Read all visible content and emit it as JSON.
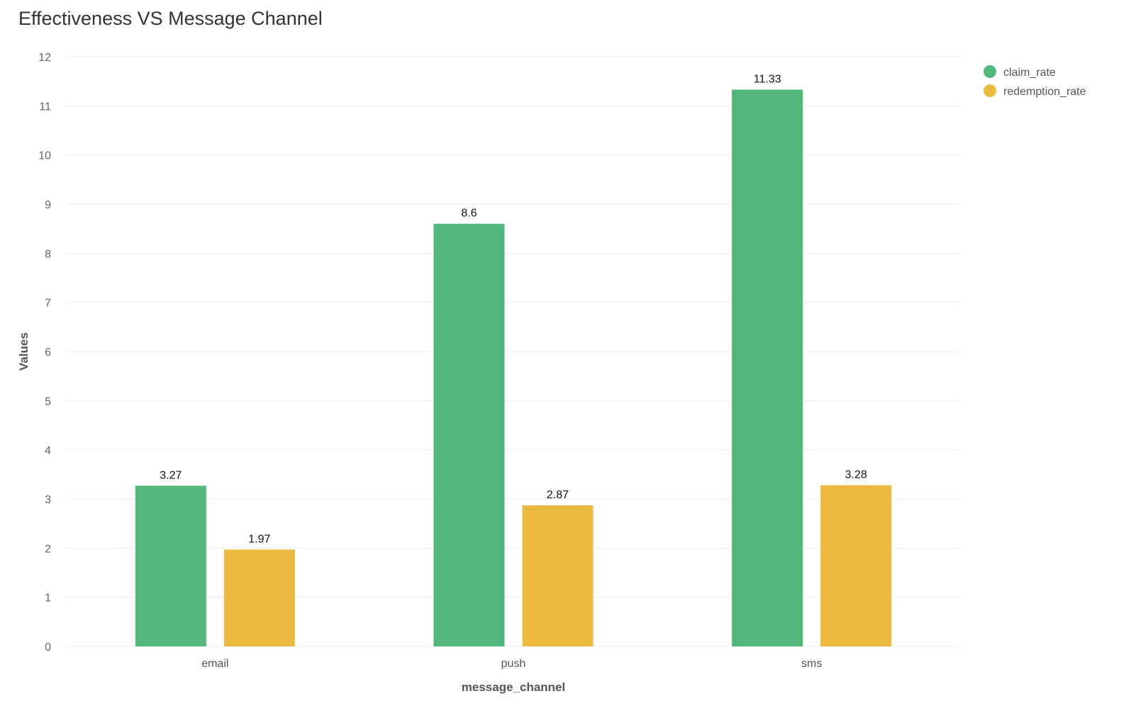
{
  "chart_data": {
    "type": "bar",
    "title": "Effectiveness VS Message Channel",
    "xlabel": "message_channel",
    "ylabel": "Values",
    "categories": [
      "email",
      "push",
      "sms"
    ],
    "series": [
      {
        "name": "claim_rate",
        "color": "#52b77a",
        "values": [
          3.27,
          8.6,
          11.33
        ],
        "labels": [
          "3.27",
          "8.6",
          "11.33"
        ]
      },
      {
        "name": "redemption_rate",
        "color": "#ecb941",
        "values": [
          1.97,
          2.87,
          3.28
        ],
        "labels": [
          "1.97",
          "2.87",
          "3.28"
        ]
      }
    ],
    "ylim": [
      0,
      12
    ],
    "yticks": [
      "0",
      "1",
      "2",
      "3",
      "4",
      "5",
      "6",
      "7",
      "8",
      "9",
      "10",
      "11",
      "12"
    ],
    "grid": true,
    "legend_position": "top-right"
  }
}
